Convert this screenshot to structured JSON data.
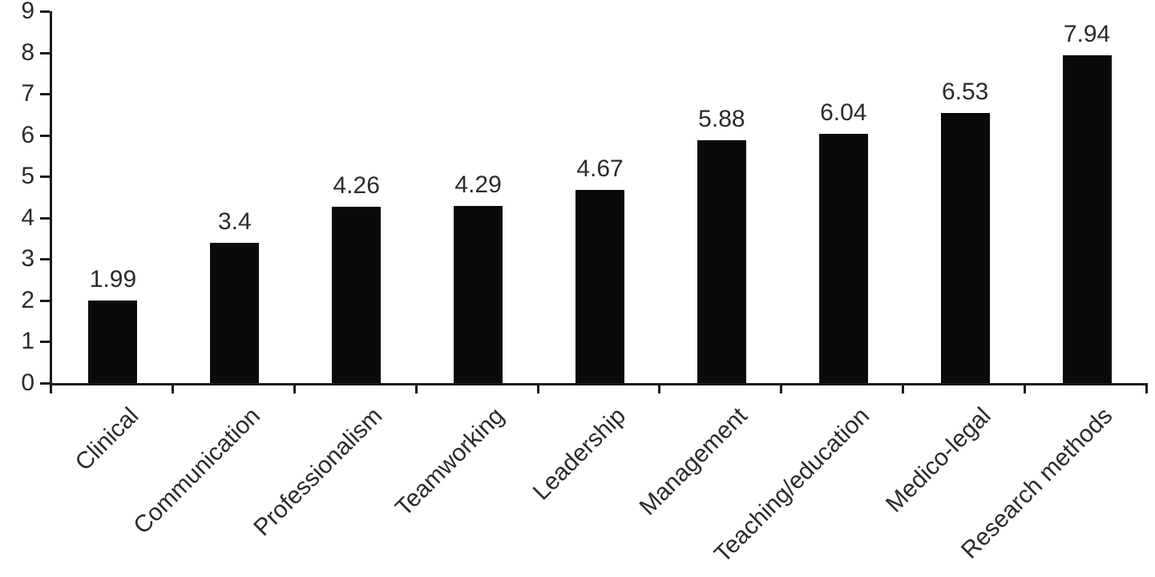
{
  "chart_data": {
    "type": "bar",
    "title": "",
    "xlabel": "",
    "ylabel": "",
    "categories": [
      "Clinical",
      "Communication",
      "Professionalism",
      "Teamworking",
      "Leadership",
      "Management",
      "Teaching/education",
      "Medico-legal",
      "Research methods"
    ],
    "values": [
      1.99,
      3.4,
      4.26,
      4.29,
      4.67,
      5.88,
      6.04,
      6.53,
      7.94
    ],
    "data_labels": [
      "1.99",
      "3.4",
      "4.26",
      "4.29",
      "4.67",
      "5.88",
      "6.04",
      "6.53",
      "7.94"
    ],
    "ylim": [
      0,
      9
    ],
    "yticks": [
      0,
      1,
      2,
      3,
      4,
      5,
      6,
      7,
      8,
      9
    ],
    "grid": false,
    "legend": false,
    "bar_color": "#0a0a0a",
    "axis_color": "#1a1a1a",
    "text_color": "#2b2b2b",
    "background_color": "#ffffff"
  }
}
